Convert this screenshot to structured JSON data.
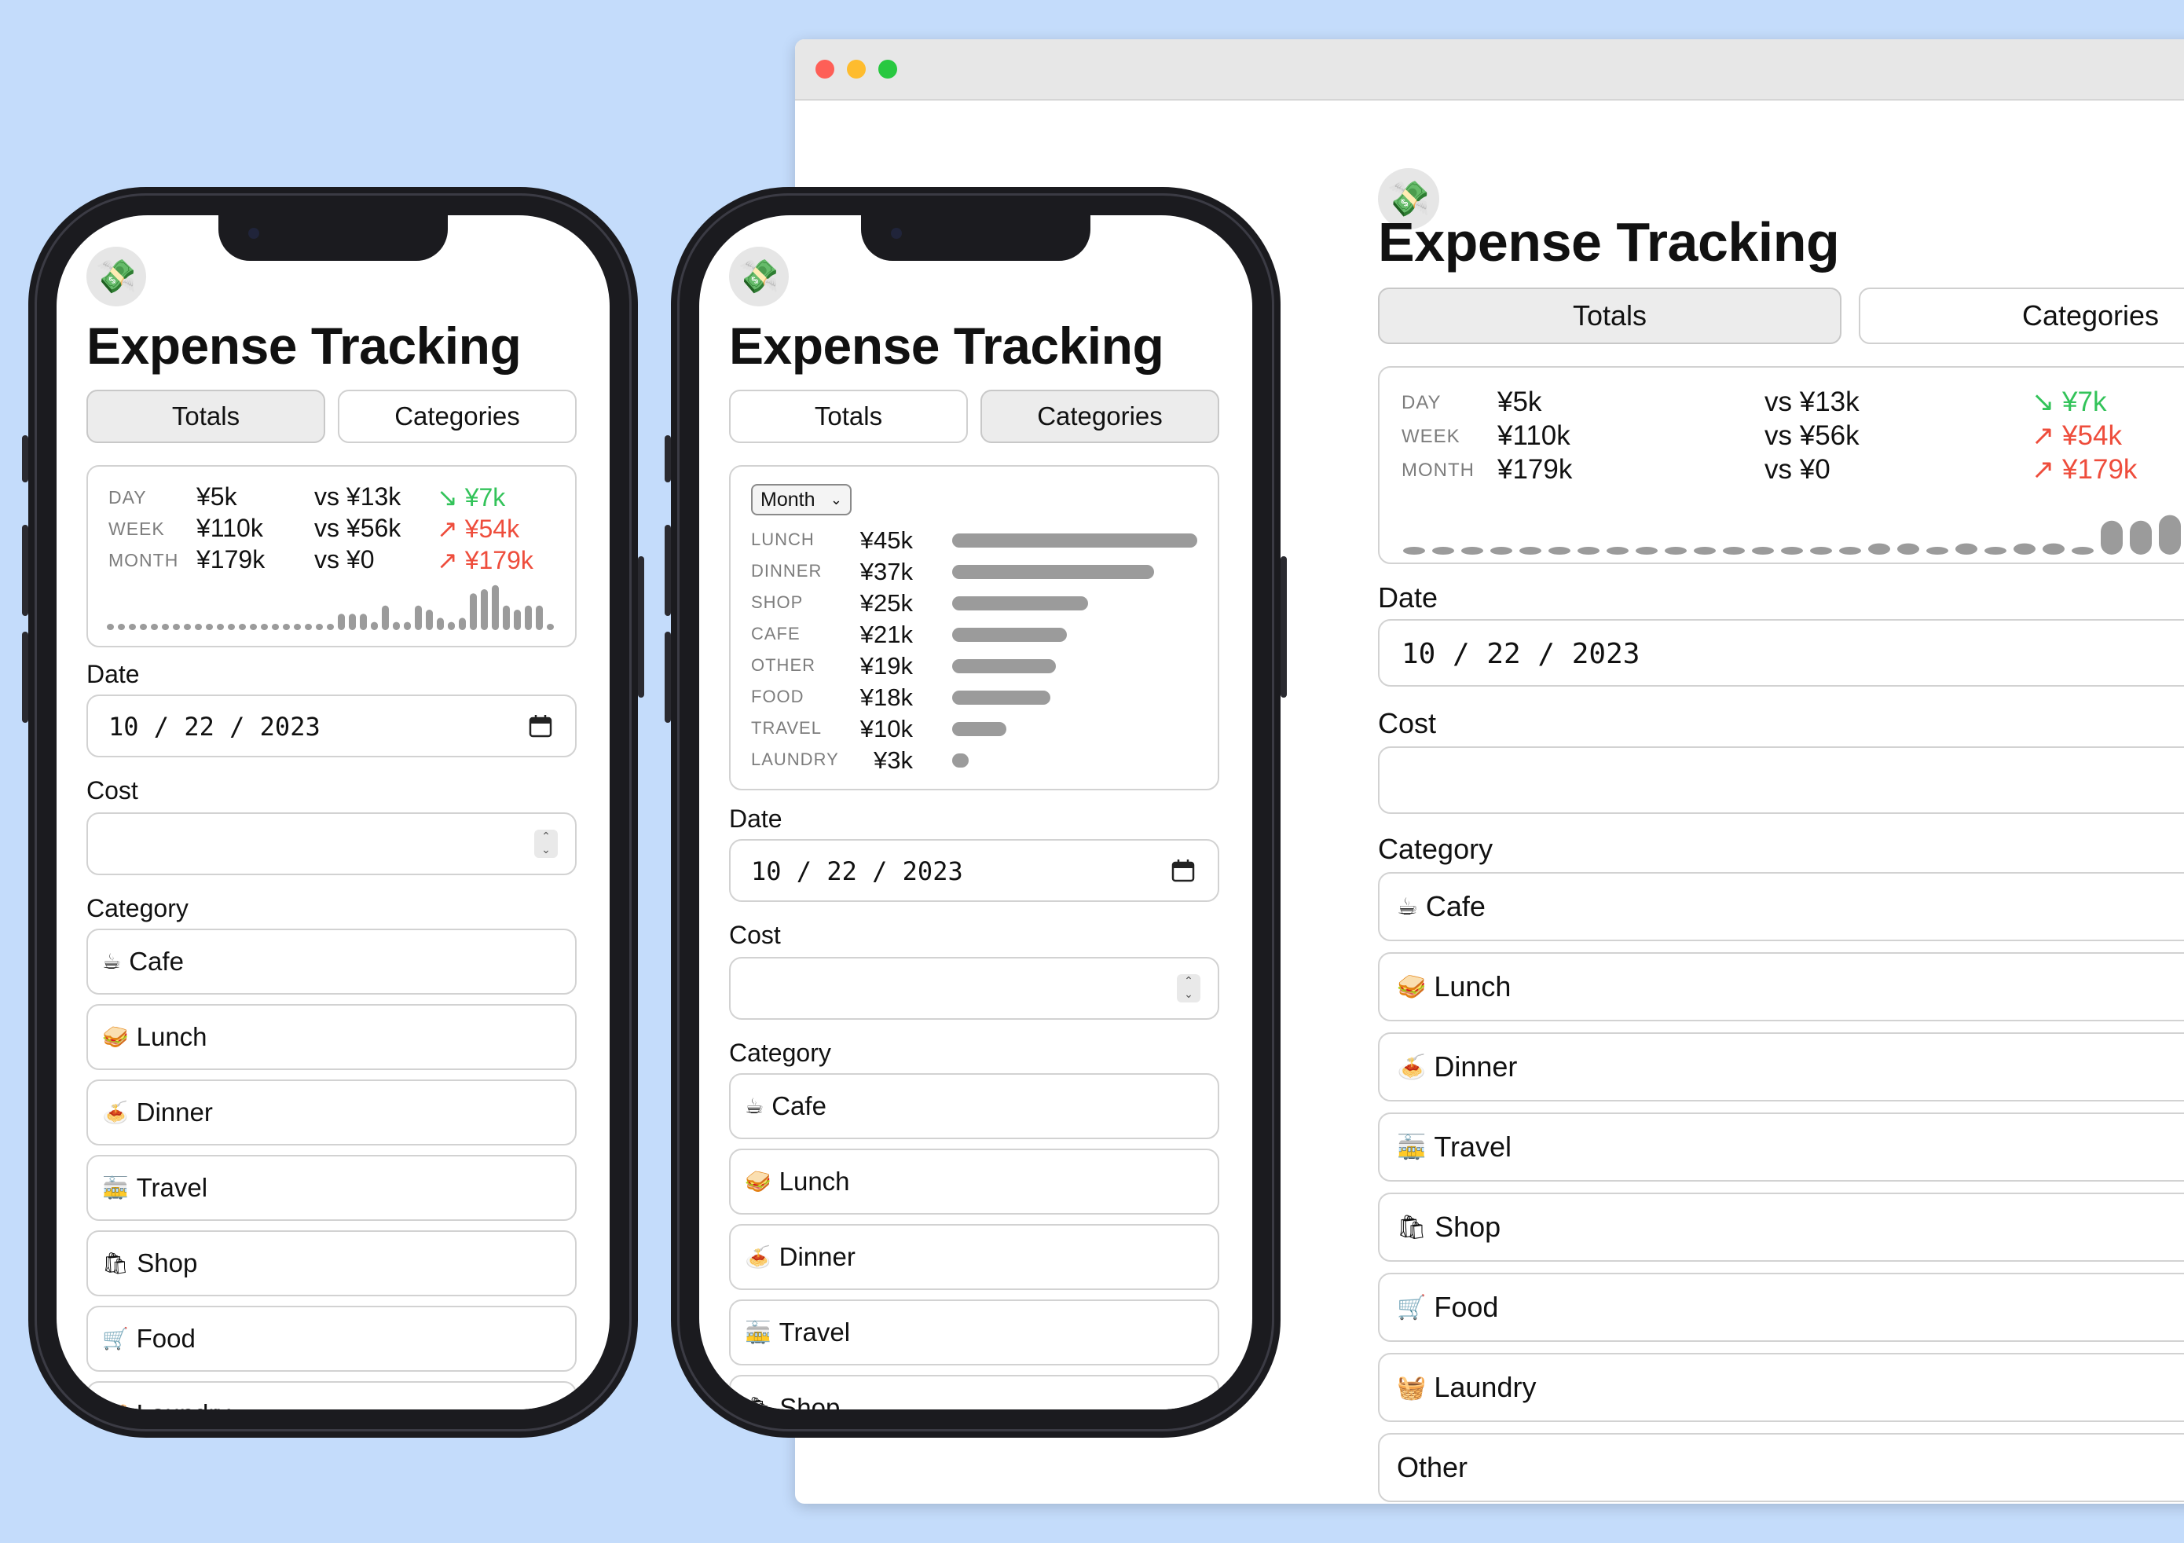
{
  "app": {
    "title": "Expense Tracking",
    "icon": "money-with-wings-icon"
  },
  "tabs": {
    "totals": "Totals",
    "categories": "Categories"
  },
  "totals": {
    "rows": [
      {
        "label": "DAY",
        "value": "¥5k",
        "vs": "vs ¥13k",
        "delta": "↘ ¥7k",
        "trend": "down"
      },
      {
        "label": "WEEK",
        "value": "¥110k",
        "vs": "vs ¥56k",
        "delta": "↗ ¥54k",
        "trend": "up"
      },
      {
        "label": "MONTH",
        "value": "¥179k",
        "vs": "vs ¥0",
        "delta": "↗ ¥179k",
        "trend": "up"
      }
    ],
    "sparkline_phone": [
      0.1,
      0.1,
      0.1,
      0.1,
      0.1,
      0.1,
      0.1,
      0.1,
      0.1,
      0.1,
      0.1,
      0.1,
      0.1,
      0.1,
      0.1,
      0.1,
      0.1,
      0.1,
      0.1,
      0.1,
      0.1,
      0.4,
      0.4,
      0.4,
      0.2,
      0.6,
      0.2,
      0.2,
      0.6,
      0.5,
      0.3,
      0.2,
      0.3,
      0.9,
      1.0,
      1.1,
      0.6,
      0.5,
      0.6,
      0.6,
      0.1
    ],
    "sparkline_desktop": [
      0.1,
      0.1,
      0.1,
      0.1,
      0.1,
      0.1,
      0.1,
      0.1,
      0.1,
      0.1,
      0.1,
      0.1,
      0.1,
      0.1,
      0.1,
      0.1,
      0.2,
      0.2,
      0.1,
      0.2,
      0.1,
      0.2,
      0.2,
      0.1,
      0.6,
      0.6,
      0.7
    ]
  },
  "categories_chart": {
    "period": "Month",
    "chart_data": {
      "type": "bar",
      "categories": [
        "LUNCH",
        "DINNER",
        "SHOP",
        "CAFE",
        "OTHER",
        "FOOD",
        "TRAVEL",
        "LAUNDRY"
      ],
      "values": [
        45,
        37,
        25,
        21,
        19,
        18,
        10,
        3
      ],
      "value_labels": [
        "¥45k",
        "¥37k",
        "¥25k",
        "¥21k",
        "¥19k",
        "¥18k",
        "¥10k",
        "¥3k"
      ]
    }
  },
  "form": {
    "date_label": "Date",
    "date_value": "10 / 22 / 2023",
    "cost_label": "Cost",
    "cost_value": "",
    "category_label": "Category"
  },
  "category_options": [
    {
      "icon": "☕",
      "label": "Cafe",
      "icon_name": "coffee-icon"
    },
    {
      "icon": "🥪",
      "label": "Lunch",
      "icon_name": "sandwich-icon"
    },
    {
      "icon": "🍝",
      "label": "Dinner",
      "icon_name": "spaghetti-icon"
    },
    {
      "icon": "🚋",
      "label": "Travel",
      "icon_name": "tram-icon"
    },
    {
      "icon": "🛍",
      "label": "Shop",
      "icon_name": "shopping-bags-icon"
    },
    {
      "icon": "🛒",
      "label": "Food",
      "icon_name": "shopping-cart-icon"
    },
    {
      "icon": "🧺",
      "label": "Laundry",
      "icon_name": "basket-icon"
    },
    {
      "icon": "",
      "label": "Other",
      "icon_name": ""
    }
  ],
  "colors": {
    "background": "#c4dcfb",
    "green": "#33c35a",
    "red": "#ee4d3c",
    "bar": "#9b9b9b"
  }
}
